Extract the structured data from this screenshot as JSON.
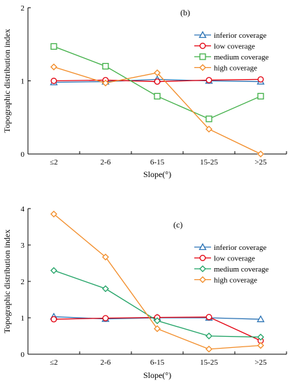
{
  "chart_data": [
    {
      "type": "line",
      "panel_label": "(b)",
      "categories": [
        "≤2",
        "2-6",
        "6-15",
        "15-25",
        ">25"
      ],
      "xlabel": "Slope(°)",
      "ylabel": "Topographic distribution index",
      "ylim": [
        0,
        2
      ],
      "yticks": [
        0,
        1,
        2
      ],
      "grid": false,
      "legend_position": "top-right",
      "series": [
        {
          "name": "inferior coverage",
          "values": [
            0.98,
            0.99,
            1.02,
            1.0,
            0.99
          ],
          "color": "#2E75B6",
          "marker": "triangle"
        },
        {
          "name": "low coverage",
          "values": [
            1.0,
            1.01,
            0.99,
            1.01,
            1.02
          ],
          "color": "#E3000F",
          "marker": "circle"
        },
        {
          "name": "medium coverage",
          "values": [
            1.47,
            1.2,
            0.79,
            0.48,
            0.79
          ],
          "color": "#3FAF46",
          "marker": "square"
        },
        {
          "name": "high coverage",
          "values": [
            1.19,
            0.97,
            1.11,
            0.34,
            0.0
          ],
          "color": "#F28C28",
          "marker": "diamond"
        }
      ]
    },
    {
      "type": "line",
      "panel_label": "(c)",
      "categories": [
        "≤2",
        "2-6",
        "6-15",
        "15-25",
        ">25"
      ],
      "xlabel": "Slope(°)",
      "ylabel": "Topographic distribution index",
      "ylim": [
        0,
        4
      ],
      "yticks": [
        0,
        1,
        2,
        3,
        4
      ],
      "grid": false,
      "legend_position": "right",
      "series": [
        {
          "name": "inferior coverage",
          "values": [
            1.03,
            0.97,
            1.0,
            1.0,
            0.96
          ],
          "color": "#2E75B6",
          "marker": "triangle"
        },
        {
          "name": "low coverage",
          "values": [
            0.96,
            0.99,
            1.01,
            1.02,
            0.37
          ],
          "color": "#E3000F",
          "marker": "circle"
        },
        {
          "name": "medium coverage",
          "values": [
            2.3,
            1.8,
            0.92,
            0.5,
            0.47
          ],
          "color": "#21A366",
          "marker": "diamond"
        },
        {
          "name": "high coverage",
          "values": [
            3.85,
            2.67,
            0.7,
            0.14,
            0.24
          ],
          "color": "#F28C28",
          "marker": "diamond"
        }
      ]
    }
  ]
}
